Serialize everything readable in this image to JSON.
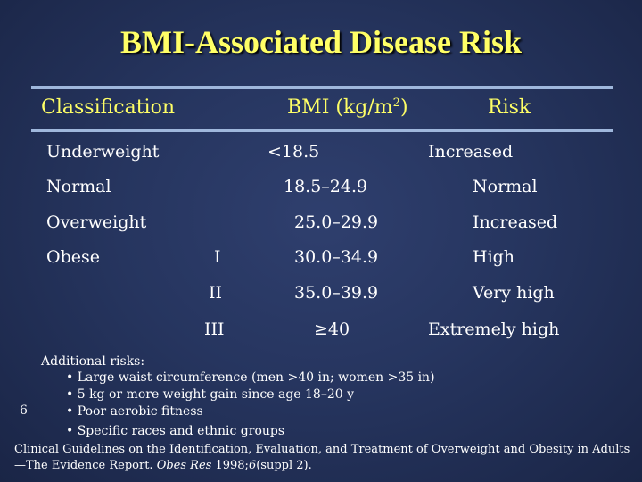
{
  "title": "BMI-Associated Disease Risk",
  "header": {
    "classification": "Classification",
    "bmi": "BMI (kg/m",
    "bmi_sup": "2",
    "bmi_close": ")",
    "risk": "Risk"
  },
  "rows": [
    {
      "classification": "Underweight",
      "class": "",
      "bmi": "<18.5",
      "risk": "Increased"
    },
    {
      "classification": "Normal",
      "class": "",
      "bmi": "18.5–24.9",
      "risk": "Normal"
    },
    {
      "classification": "Overweight",
      "class": "",
      "bmi": "25.0–29.9",
      "risk": "Increased"
    },
    {
      "classification": "Obese",
      "class": "I",
      "bmi": "30.0–34.9",
      "risk": "High"
    },
    {
      "classification": "",
      "class": "II",
      "bmi": "35.0–39.9",
      "risk": "Very high"
    },
    {
      "classification": "",
      "class": "III",
      "bmi": "≥40",
      "risk": "Extremely high"
    }
  ],
  "notes": {
    "heading": "Additional risks:",
    "items": [
      "Large waist circumference (men >40 in; women >35 in)",
      "5 kg or more weight gain since age 18–20 y",
      "Poor aerobic fitness",
      "Specific races and ethnic groups"
    ]
  },
  "citation": {
    "text": "Clinical Guidelines on the Identification, Evaluation, and Treatment of Overweight and Obesity in Adults—The Evidence Report. ",
    "journal": "Obes Res",
    "year": " 1998;",
    "volume": "6",
    "suppl": "(suppl 2)."
  },
  "page_number": "6"
}
